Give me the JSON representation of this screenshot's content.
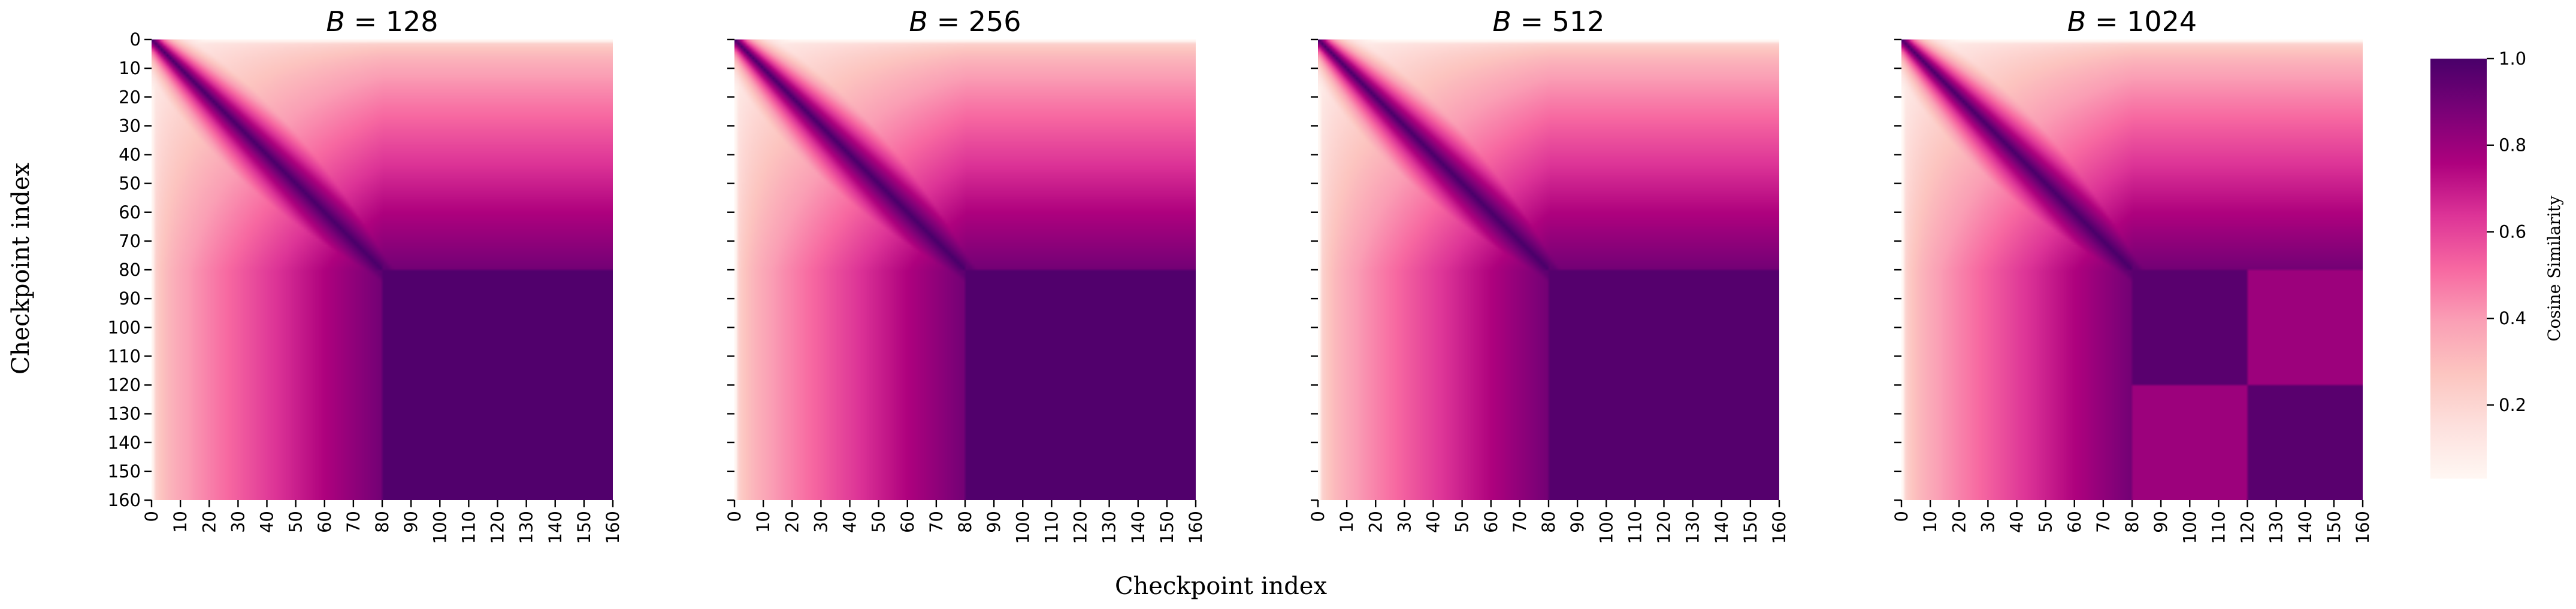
{
  "figure": {
    "xlabel": "Checkpoint index",
    "ylabel": "Checkpoint index",
    "colorbar": {
      "label": "Cosine Similarity",
      "ticks": [
        "0.2",
        "0.4",
        "0.6",
        "0.8",
        "1.0"
      ],
      "tick_values": [
        0.2,
        0.4,
        0.6,
        0.8,
        1.0
      ],
      "range": [
        0.03,
        1.0
      ],
      "colormap": "RdPu",
      "colors": [
        "#fff7f3",
        "#fde0dd",
        "#fcc5c0",
        "#fa9fb5",
        "#f768a1",
        "#dd3497",
        "#ae017e",
        "#7a0177",
        "#49006a"
      ]
    }
  },
  "chart_data": [
    {
      "type": "heatmap",
      "title": "$B = 128$",
      "title_parts": {
        "var": "B",
        "eq": " = ",
        "num": "128"
      },
      "x_range": [
        0,
        160
      ],
      "y_range": [
        0,
        160
      ],
      "xticks": [
        "0",
        "10",
        "20",
        "30",
        "40",
        "50",
        "60",
        "70",
        "80",
        "90",
        "100",
        "110",
        "120",
        "130",
        "140",
        "150",
        "160"
      ],
      "yticks": [
        "0",
        "10",
        "20",
        "30",
        "40",
        "50",
        "60",
        "70",
        "80",
        "90",
        "100",
        "110",
        "120",
        "130",
        "140",
        "150",
        "160"
      ],
      "show_ytick_labels": true,
      "approx_structure": {
        "diagonal_similarity": 1.0,
        "block_start_index": 80,
        "block_similarity": 0.98,
        "early_rows_min_similarity": 0.05,
        "block_breaks": []
      }
    },
    {
      "type": "heatmap",
      "title": "$B = 256$",
      "title_parts": {
        "var": "B",
        "eq": " = ",
        "num": "256"
      },
      "x_range": [
        0,
        160
      ],
      "y_range": [
        0,
        160
      ],
      "xticks": [
        "0",
        "10",
        "20",
        "30",
        "40",
        "50",
        "60",
        "70",
        "80",
        "90",
        "100",
        "110",
        "120",
        "130",
        "140",
        "150",
        "160"
      ],
      "yticks": [],
      "show_ytick_labels": false,
      "approx_structure": {
        "diagonal_similarity": 1.0,
        "block_start_index": 80,
        "block_similarity": 0.98,
        "early_rows_min_similarity": 0.04,
        "block_breaks": []
      }
    },
    {
      "type": "heatmap",
      "title": "$B = 512$",
      "title_parts": {
        "var": "B",
        "eq": " = ",
        "num": "512"
      },
      "x_range": [
        0,
        160
      ],
      "y_range": [
        0,
        160
      ],
      "xticks": [
        "0",
        "10",
        "20",
        "30",
        "40",
        "50",
        "60",
        "70",
        "80",
        "90",
        "100",
        "110",
        "120",
        "130",
        "140",
        "150",
        "160"
      ],
      "yticks": [],
      "show_ytick_labels": false,
      "approx_structure": {
        "diagonal_similarity": 1.0,
        "block_start_index": 80,
        "block_similarity": 0.97,
        "early_rows_min_similarity": 0.03,
        "block_breaks": []
      }
    },
    {
      "type": "heatmap",
      "title": "$B = 1024$",
      "title_parts": {
        "var": "B",
        "eq": " = ",
        "num": "1024"
      },
      "x_range": [
        0,
        160
      ],
      "y_range": [
        0,
        160
      ],
      "xticks": [
        "0",
        "10",
        "20",
        "30",
        "40",
        "50",
        "60",
        "70",
        "80",
        "90",
        "100",
        "110",
        "120",
        "130",
        "140",
        "150",
        "160"
      ],
      "yticks": [],
      "show_ytick_labels": false,
      "approx_structure": {
        "diagonal_similarity": 1.0,
        "block_start_index": 80,
        "block_similarity": 0.96,
        "early_rows_min_similarity": 0.03,
        "block_breaks": [
          120
        ]
      }
    }
  ]
}
